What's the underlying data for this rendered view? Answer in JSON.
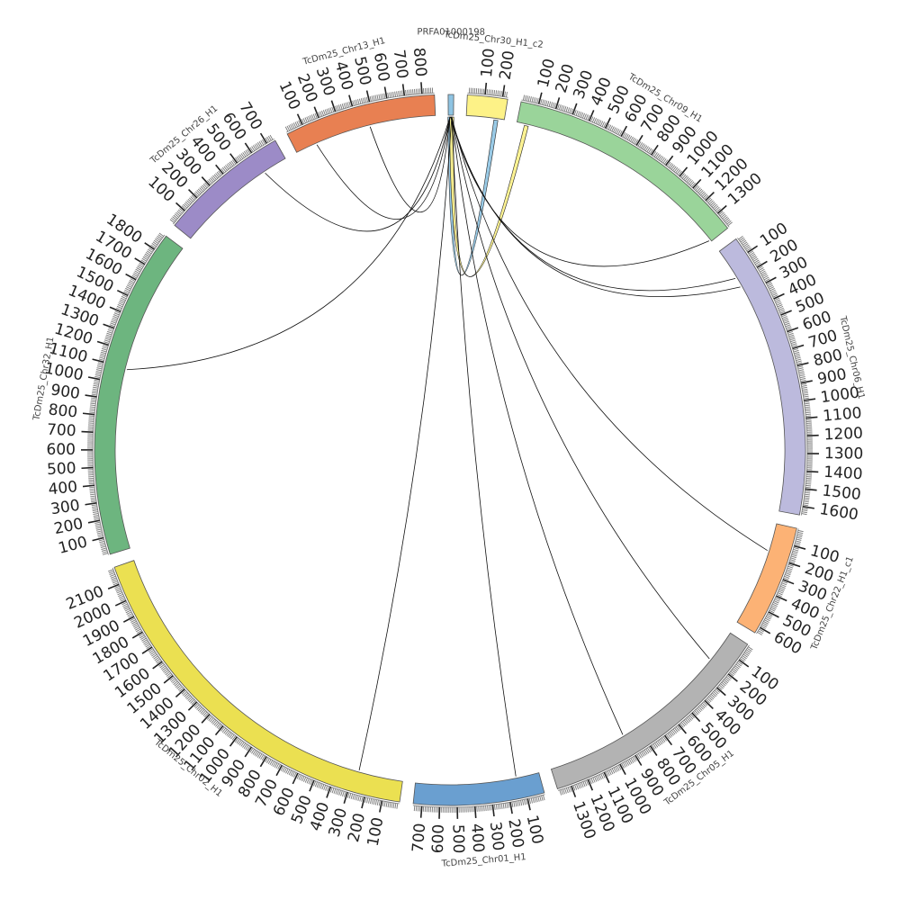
{
  "diagram": {
    "type": "circos",
    "chromosomes": [
      {
        "name": "PRFA01000198",
        "size": 30,
        "color": "#8ec4e3",
        "labels": []
      },
      {
        "name": "TcDm25_Chr30_H1_c2",
        "size": 230,
        "color": "#fdf287",
        "labels": [
          "100",
          "200"
        ]
      },
      {
        "name": "TcDm25_Chr09_H1",
        "size": 1400,
        "color": "#9ad49a",
        "labels": [
          "100",
          "200",
          "300",
          "400",
          "500",
          "600",
          "700",
          "800",
          "900",
          "1000",
          "1100",
          "1200",
          "1300"
        ]
      },
      {
        "name": "TcDm25_Chr06_H1",
        "size": 1650,
        "color": "#bcbadd",
        "labels": [
          "100",
          "200",
          "300",
          "400",
          "500",
          "600",
          "700",
          "800",
          "900",
          "1000",
          "1100",
          "1200",
          "1300",
          "1400",
          "1500",
          "1600"
        ]
      },
      {
        "name": "TcDm25_Chr22_H1_c1",
        "size": 640,
        "color": "#fcb275",
        "labels": [
          "100",
          "200",
          "300",
          "400",
          "500",
          "600"
        ]
      },
      {
        "name": "TcDm25_Chr05_H1",
        "size": 1380,
        "color": "#b3b3b3",
        "labels": [
          "100",
          "200",
          "300",
          "400",
          "500",
          "600",
          "700",
          "800",
          "900",
          "1000",
          "1100",
          "1200",
          "1300"
        ]
      },
      {
        "name": "TcDm25_Chr01_H1",
        "size": 750,
        "color": "#6a9fd0",
        "labels": [
          "100",
          "200",
          "300",
          "400",
          "500",
          "600",
          "700"
        ]
      },
      {
        "name": "TcDm25_Chr02_H1",
        "size": 2200,
        "color": "#ebe051",
        "labels": [
          "100",
          "200",
          "300",
          "400",
          "500",
          "600",
          "700",
          "800",
          "900",
          "1000",
          "1100",
          "1200",
          "1300",
          "1400",
          "1500",
          "1600",
          "1700",
          "1800",
          "1900",
          "2000",
          "2100"
        ]
      },
      {
        "name": "TcDm25_Chr32_H1",
        "size": 1900,
        "color": "#6db57f",
        "labels": [
          "100",
          "200",
          "300",
          "400",
          "500",
          "600",
          "700",
          "800",
          "900",
          "1000",
          "1100",
          "1200",
          "1300",
          "1400",
          "1500",
          "1600",
          "1700",
          "1800"
        ]
      },
      {
        "name": "TcDm25_Chr26_H1",
        "size": 750,
        "color": "#9c8bc7",
        "labels": [
          "100",
          "200",
          "300",
          "400",
          "500",
          "600",
          "700"
        ]
      },
      {
        "name": "TcDm25_Chr13_H1",
        "size": 870,
        "color": "#e88052",
        "labels": [
          "100",
          "200",
          "300",
          "400",
          "500",
          "600",
          "700",
          "800"
        ]
      }
    ],
    "links": [
      {
        "from": "PRFA01000198",
        "from_pos": 10,
        "to": "TcDm25_Chr30_H1_c2",
        "to_pos": 180,
        "type": "ribbon",
        "color": "#8ec4e3"
      },
      {
        "from": "PRFA01000198",
        "from_pos": 20,
        "to": "TcDm25_Chr09_H1",
        "to_pos": 60,
        "type": "ribbon",
        "color": "#fdf287"
      },
      {
        "from": "PRFA01000198",
        "from_pos": 10,
        "to": "TcDm25_Chr13_H1",
        "to_pos": 130,
        "type": "line"
      },
      {
        "from": "PRFA01000198",
        "from_pos": 10,
        "to": "TcDm25_Chr13_H1",
        "to_pos": 470,
        "type": "line"
      },
      {
        "from": "PRFA01000198",
        "from_pos": 10,
        "to": "TcDm25_Chr26_H1",
        "to_pos": 600,
        "type": "line"
      },
      {
        "from": "PRFA01000198",
        "from_pos": 10,
        "to": "TcDm25_Chr32_H1",
        "to_pos": 1090,
        "type": "line"
      },
      {
        "from": "PRFA01000198",
        "from_pos": 15,
        "to": "TcDm25_Chr09_H1",
        "to_pos": 1390,
        "type": "line"
      },
      {
        "from": "PRFA01000198",
        "from_pos": 15,
        "to": "TcDm25_Chr06_H1",
        "to_pos": 190,
        "type": "line"
      },
      {
        "from": "PRFA01000198",
        "from_pos": 15,
        "to": "TcDm25_Chr06_H1",
        "to_pos": 250,
        "type": "line"
      },
      {
        "from": "PRFA01000198",
        "from_pos": 20,
        "to": "TcDm25_Chr22_H1_c1",
        "to_pos": 170,
        "type": "line"
      },
      {
        "from": "PRFA01000198",
        "from_pos": 20,
        "to": "TcDm25_Chr05_H1",
        "to_pos": 200,
        "type": "line"
      },
      {
        "from": "PRFA01000198",
        "from_pos": 20,
        "to": "TcDm25_Chr05_H1",
        "to_pos": 900,
        "type": "line"
      },
      {
        "from": "PRFA01000198",
        "from_pos": 20,
        "to": "TcDm25_Chr01_H1",
        "to_pos": 140,
        "type": "line"
      },
      {
        "from": "PRFA01000198",
        "from_pos": 20,
        "to": "TcDm25_Chr02_H1",
        "to_pos": 270,
        "type": "line"
      }
    ]
  }
}
